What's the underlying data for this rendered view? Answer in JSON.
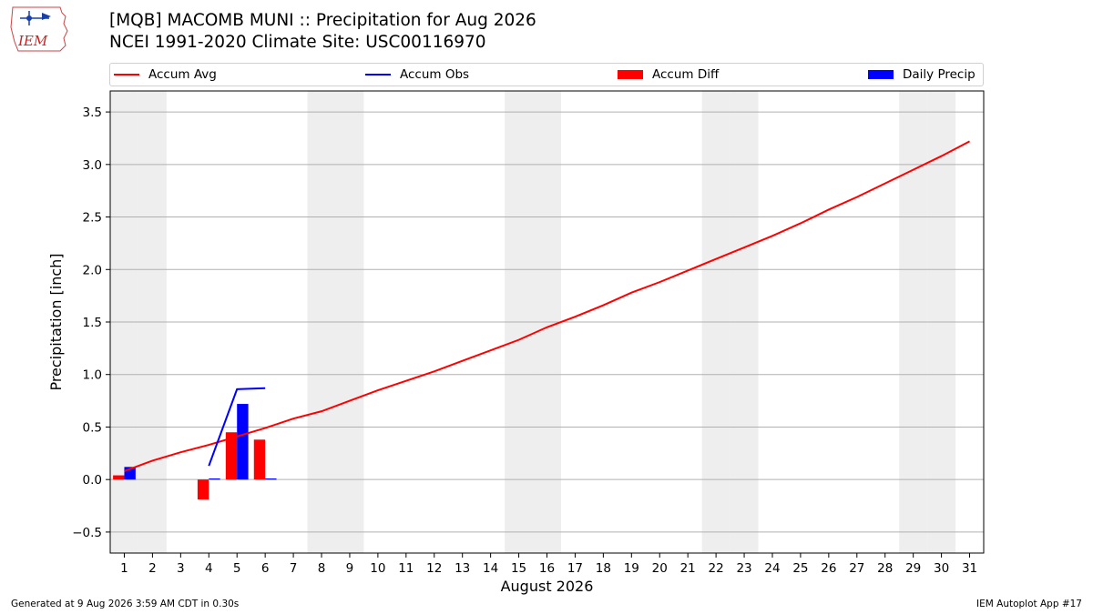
{
  "title_line1": "[MQB] MACOMB MUNI :: Precipitation for Aug 2026",
  "title_line2": "NCEI 1991-2020 Climate Site: USC00116970",
  "logo_text": "IEM",
  "footer_left": "Generated at 9 Aug 2026 3:59 AM CDT in 0.30s",
  "footer_right": "IEM Autoplot App #17",
  "legend": {
    "accum_avg": "Accum Avg",
    "accum_obs": "Accum Obs",
    "accum_diff": "Accum Diff",
    "daily_precip": "Daily Precip"
  },
  "colors": {
    "accum_avg": "#ff0000",
    "accum_obs": "#0000ff",
    "accum_diff": "#ff0000",
    "daily_precip": "#0000ff",
    "weekend_shade": "#eeeeee",
    "grid": "#b0b0b0"
  },
  "chart_data": {
    "type": "bar",
    "xlabel": "August 2026",
    "ylabel": "Precipitation [inch]",
    "xlim": [
      0.5,
      31.5
    ],
    "ylim": [
      -0.7,
      3.7
    ],
    "yticks": [
      -0.5,
      0.0,
      0.5,
      1.0,
      1.5,
      2.0,
      2.5,
      3.0,
      3.5
    ],
    "ytick_labels": [
      "−0.5",
      "0.0",
      "0.5",
      "1.0",
      "1.5",
      "2.0",
      "2.5",
      "3.0",
      "3.5"
    ],
    "x": [
      1,
      2,
      3,
      4,
      5,
      6,
      7,
      8,
      9,
      10,
      11,
      12,
      13,
      14,
      15,
      16,
      17,
      18,
      19,
      20,
      21,
      22,
      23,
      24,
      25,
      26,
      27,
      28,
      29,
      30,
      31
    ],
    "xtick_labels": [
      "1",
      "2",
      "3",
      "4",
      "5",
      "6",
      "7",
      "8",
      "9",
      "10",
      "11",
      "12",
      "13",
      "14",
      "15",
      "16",
      "17",
      "18",
      "19",
      "20",
      "21",
      "22",
      "23",
      "24",
      "25",
      "26",
      "27",
      "28",
      "29",
      "30",
      "31"
    ],
    "weekend_days": [
      1,
      2,
      8,
      9,
      15,
      16,
      22,
      23,
      29,
      30
    ],
    "grid": true,
    "legend_position": "top",
    "series": [
      {
        "name": "Accum Avg",
        "kind": "line",
        "x": [
          1,
          2,
          3,
          4,
          5,
          6,
          7,
          8,
          9,
          10,
          11,
          12,
          13,
          14,
          15,
          16,
          17,
          18,
          19,
          20,
          21,
          22,
          23,
          24,
          25,
          26,
          27,
          28,
          29,
          30,
          31
        ],
        "values": [
          0.08,
          0.18,
          0.26,
          0.33,
          0.41,
          0.49,
          0.58,
          0.65,
          0.75,
          0.85,
          0.94,
          1.03,
          1.13,
          1.23,
          1.33,
          1.45,
          1.55,
          1.66,
          1.78,
          1.88,
          1.99,
          2.1,
          2.21,
          2.32,
          2.44,
          2.57,
          2.69,
          2.82,
          2.95,
          3.08,
          3.22
        ]
      },
      {
        "name": "Accum Obs",
        "kind": "line",
        "x": [
          4,
          5,
          6
        ],
        "values": [
          0.13,
          0.86,
          0.87
        ]
      },
      {
        "name": "Accum Diff",
        "kind": "bar",
        "x": [
          1,
          4,
          5,
          6
        ],
        "values": [
          0.04,
          -0.19,
          0.45,
          0.38
        ]
      },
      {
        "name": "Daily Precip",
        "kind": "bar",
        "x": [
          1,
          4,
          5,
          6
        ],
        "values": [
          0.12,
          0.01,
          0.72,
          0.01
        ]
      }
    ]
  }
}
